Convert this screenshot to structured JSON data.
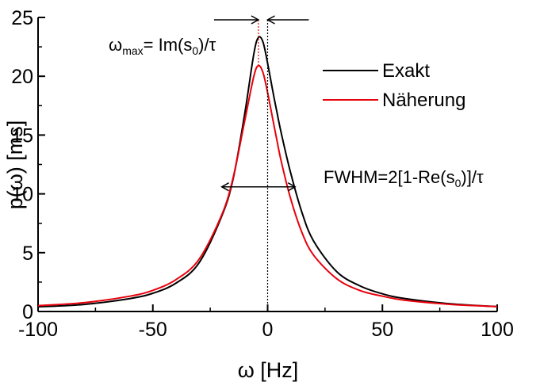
{
  "chart_data": {
    "type": "line",
    "xlabel": "ω [Hz]",
    "ylabel": "p(ω) [ms]",
    "xlim": [
      -100,
      100
    ],
    "ylim": [
      0,
      25
    ],
    "xticks": [
      -100,
      -50,
      0,
      50,
      100
    ],
    "yticks": [
      0,
      5,
      10,
      15,
      20,
      25
    ],
    "xtick_labels": [
      "-100",
      "-50",
      "0",
      "50",
      "100"
    ],
    "ytick_labels": [
      "0",
      "5",
      "10",
      "15",
      "20",
      "25"
    ],
    "grid": false,
    "legend_position": "top-right",
    "series": [
      {
        "name": "Exakt",
        "color": "#000000",
        "x": [
          -100,
          -80,
          -60,
          -50,
          -40,
          -30,
          -20,
          -15,
          -10,
          -6,
          -4,
          -2,
          0,
          2,
          4,
          6,
          10,
          15,
          20,
          30,
          40,
          50,
          60,
          80,
          100
        ],
        "y": [
          0.4,
          0.6,
          1.1,
          1.55,
          2.4,
          4.1,
          8.1,
          11.3,
          16.8,
          21.9,
          23.3,
          22.9,
          21.1,
          19.0,
          17.0,
          15.1,
          11.8,
          8.4,
          6.0,
          3.4,
          2.2,
          1.5,
          1.1,
          0.65,
          0.42
        ]
      },
      {
        "name": "Näherung",
        "color": "#e8000b",
        "x": [
          -100,
          -80,
          -60,
          -50,
          -40,
          -30,
          -20,
          -15,
          -10,
          -6,
          -4,
          -2,
          0,
          2,
          4,
          6,
          10,
          15,
          20,
          30,
          40,
          50,
          60,
          80,
          100
        ],
        "y": [
          0.5,
          0.75,
          1.3,
          1.8,
          2.7,
          4.4,
          8.2,
          11.4,
          16.2,
          20.0,
          20.9,
          20.3,
          18.6,
          16.6,
          14.6,
          12.7,
          9.6,
          6.7,
          4.8,
          2.8,
          1.8,
          1.3,
          0.95,
          0.6,
          0.42
        ]
      }
    ],
    "annotations": {
      "peak_label": "ω",
      "peak_label_sub": "max",
      "peak_formula_a": "= Im(s",
      "peak_formula_sub": "0",
      "peak_formula_b": ")/τ",
      "fwhm_label_a": "FWHM=2[1-Re(s",
      "fwhm_label_sub": "0",
      "fwhm_label_b": ")]/τ",
      "peak_omega": -4,
      "fwhm_from": -20,
      "fwhm_to": 12,
      "fwhm_level": 10.6
    }
  }
}
